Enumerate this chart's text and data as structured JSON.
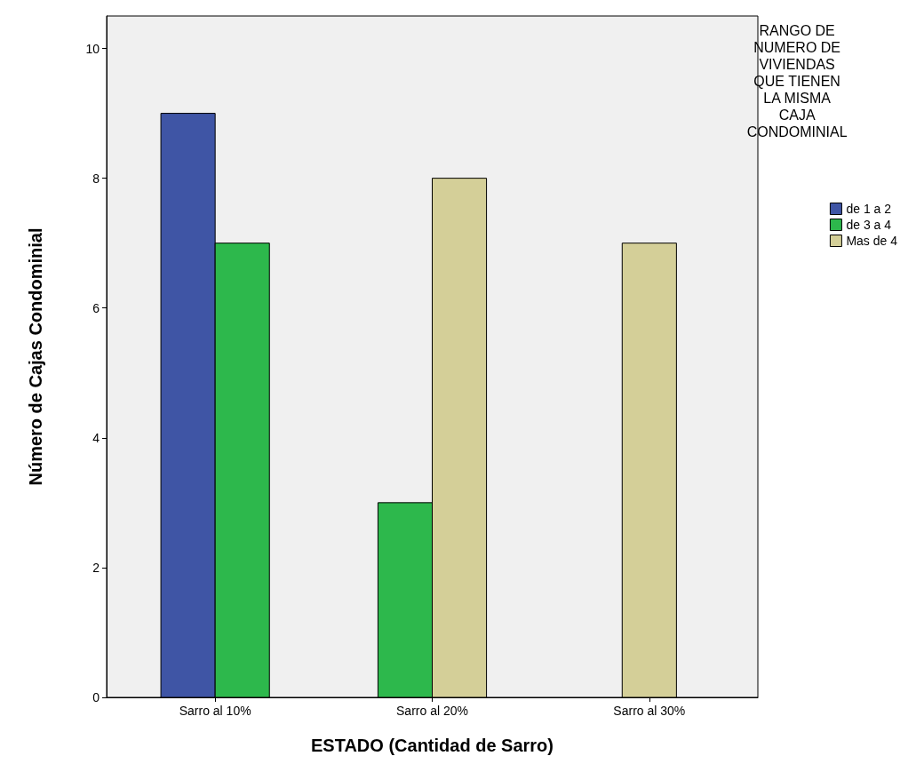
{
  "chart_data": {
    "type": "bar",
    "xlabel": "ESTADO (Cantidad de Sarro)",
    "ylabel": "Número de Cajas Condominial",
    "legend_title": "RANGO DE\nNUMERO DE\nVIVIENDAS\nQUE TIENEN\nLA MISMA\nCAJA\nCONDOMINIAL",
    "categories": [
      "Sarro al 10%",
      "Sarro al 20%",
      "Sarro al 30%"
    ],
    "series": [
      {
        "name": "de 1 a 2",
        "color": "#3f55a5",
        "values": [
          9,
          null,
          null
        ]
      },
      {
        "name": "de 3 a 4",
        "color": "#2db84c",
        "values": [
          7,
          3,
          null
        ]
      },
      {
        "name": "Mas de 4",
        "color": "#d4cf98",
        "values": [
          null,
          8,
          7
        ]
      }
    ],
    "ylim": [
      0,
      10.5
    ],
    "yticks": [
      0,
      2,
      4,
      6,
      8,
      10
    ],
    "legend": "top right"
  }
}
